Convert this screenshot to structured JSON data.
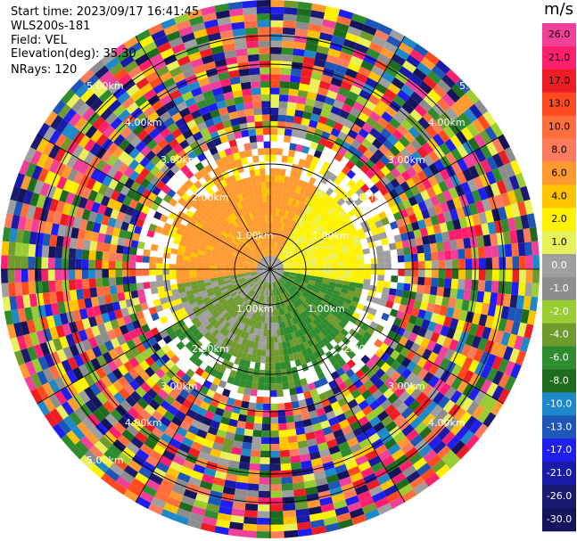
{
  "info": {
    "start_time": "Start time: 2023/09/17 16:41:45",
    "site": "WLS200s-181",
    "field": "Field: VEL",
    "elevation": "Elevation(deg): 35.30",
    "nrays": "NRays: 120"
  },
  "colorbar": {
    "unit": "m/s",
    "ticks": [
      "26.0",
      "21.0",
      "17.0",
      "13.0",
      "10.0",
      "8.0",
      "6.0",
      "4.0",
      "2.0",
      "1.0",
      "0.0",
      "-1.0",
      "-2.0",
      "-4.0",
      "-6.0",
      "-8.0",
      "-10.0",
      "-13.0",
      "-17.0",
      "-21.0",
      "-26.0",
      "-30.0"
    ],
    "colors": [
      "#f0409a",
      "#ff1f6e",
      "#ee1c24",
      "#ff4a1f",
      "#ff6e3c",
      "#fb7c5c",
      "#ff9a30",
      "#ffc400",
      "#fff200",
      "#e9f05a",
      "#9f9f9f",
      "#8d8d8d",
      "#9acd32",
      "#6f9a2e",
      "#2e8b2e",
      "#1e6b1e",
      "#1e88c8",
      "#1e56b8",
      "#1e1eee",
      "#1a1aa8",
      "#1a1a6e",
      "#14145a"
    ]
  },
  "range_labels": [
    "1.00km",
    "1.00km",
    "1.00km",
    "1.00km",
    "2.00km",
    "2.00km",
    "2.00km",
    "2.00km",
    "3.00km",
    "3.00km",
    "3.00km",
    "3.00km",
    "4.00km",
    "4.00km",
    "4.00km",
    "4.00km",
    "5.00km",
    "5.00km",
    "5.00km"
  ],
  "radar": {
    "rays": 120,
    "gates": 40,
    "range_rings_km": [
      1,
      2,
      3,
      4,
      5
    ]
  }
}
